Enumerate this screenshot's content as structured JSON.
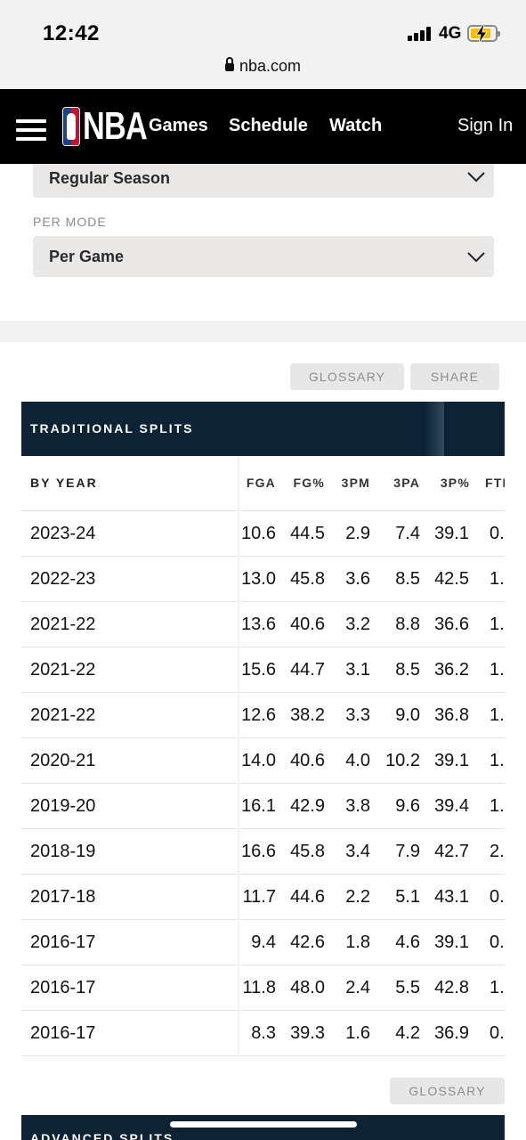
{
  "status_bar": {
    "time": "12:42",
    "network": "4G",
    "url": "nba.com"
  },
  "nav": {
    "logo_text": "NBA",
    "links": [
      "Games",
      "Schedule",
      "Watch"
    ],
    "sign_in": "Sign In"
  },
  "filters": {
    "season_type_value": "Regular Season",
    "per_mode_label": "PER MODE",
    "per_mode_value": "Per Game"
  },
  "actions": {
    "glossary": "GLOSSARY",
    "share": "SHARE"
  },
  "table": {
    "title": "TRADITIONAL SPLITS",
    "row_header": "BY YEAR",
    "columns": [
      "FGA",
      "FG%",
      "3PM",
      "3PA",
      "3P%",
      "FTI"
    ],
    "rows": [
      {
        "year": "2023-24",
        "values": [
          "10.6",
          "44.5",
          "2.9",
          "7.4",
          "39.1",
          "0."
        ]
      },
      {
        "year": "2022-23",
        "values": [
          "13.0",
          "45.8",
          "3.6",
          "8.5",
          "42.5",
          "1."
        ]
      },
      {
        "year": "2021-22",
        "values": [
          "13.6",
          "40.6",
          "3.2",
          "8.8",
          "36.6",
          "1."
        ]
      },
      {
        "year": "2021-22",
        "values": [
          "15.6",
          "44.7",
          "3.1",
          "8.5",
          "36.2",
          "1."
        ]
      },
      {
        "year": "2021-22",
        "values": [
          "12.6",
          "38.2",
          "3.3",
          "9.0",
          "36.8",
          "1."
        ]
      },
      {
        "year": "2020-21",
        "values": [
          "14.0",
          "40.6",
          "4.0",
          "10.2",
          "39.1",
          "1."
        ]
      },
      {
        "year": "2019-20",
        "values": [
          "16.1",
          "42.9",
          "3.8",
          "9.6",
          "39.4",
          "1."
        ]
      },
      {
        "year": "2018-19",
        "values": [
          "16.6",
          "45.8",
          "3.4",
          "7.9",
          "42.7",
          "2."
        ]
      },
      {
        "year": "2017-18",
        "values": [
          "11.7",
          "44.6",
          "2.2",
          "5.1",
          "43.1",
          "0."
        ]
      },
      {
        "year": "2016-17",
        "values": [
          "9.4",
          "42.6",
          "1.8",
          "4.6",
          "39.1",
          "0."
        ]
      },
      {
        "year": "2016-17",
        "values": [
          "11.8",
          "48.0",
          "2.4",
          "5.5",
          "42.8",
          "1."
        ]
      },
      {
        "year": "2016-17",
        "values": [
          "8.3",
          "39.3",
          "1.6",
          "4.2",
          "36.9",
          "0."
        ]
      }
    ]
  },
  "bottom": {
    "glossary": "GLOSSARY",
    "advanced_title": "ADVANCED SPLITS"
  }
}
